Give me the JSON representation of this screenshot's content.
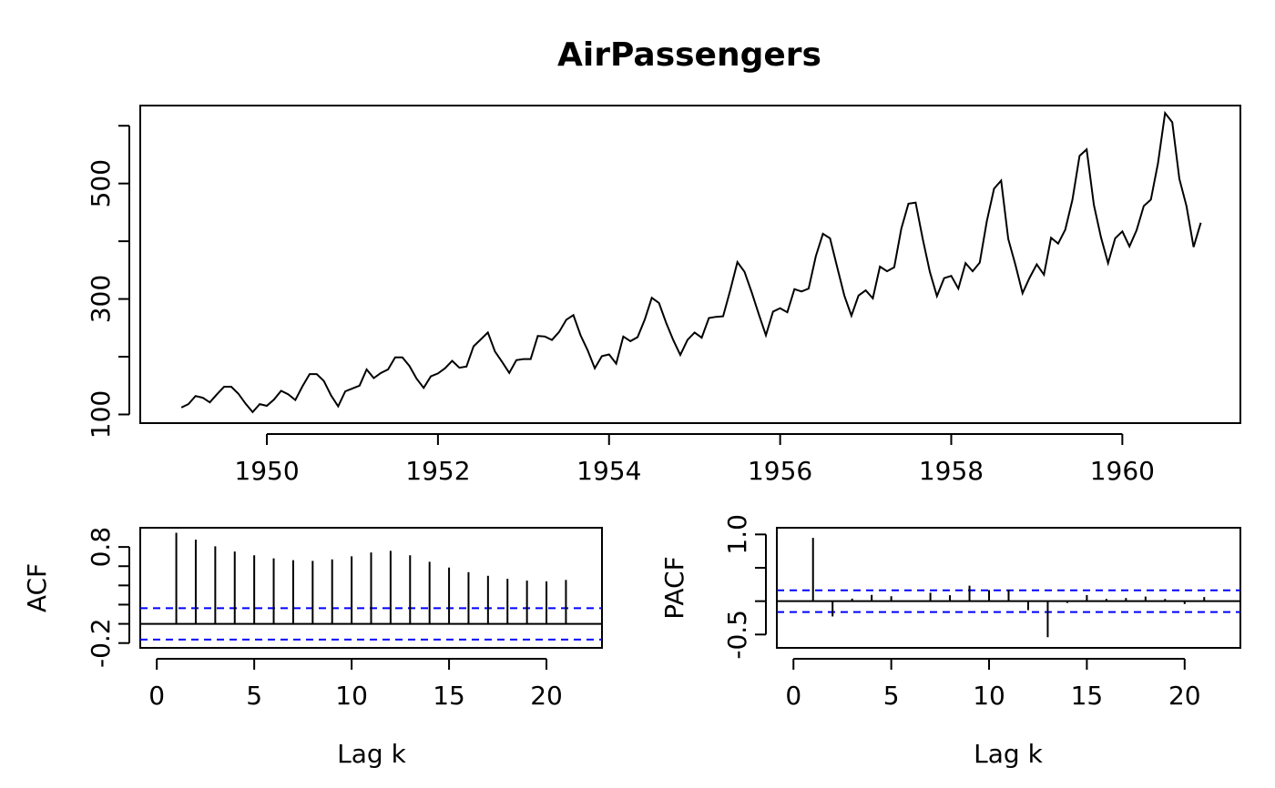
{
  "figure": {
    "background": "#ffffff"
  },
  "chart_data": [
    {
      "id": "series",
      "type": "line",
      "title": "AirPassengers",
      "xlabel": "",
      "ylabel": "",
      "xlim": [
        1948.52,
        1961.38
      ],
      "ylim": [
        85,
        635
      ],
      "x_ticks": [
        1950,
        1952,
        1954,
        1956,
        1958,
        1960
      ],
      "x_tick_labels": [
        "1950",
        "1952",
        "1954",
        "1956",
        "1958",
        "1960"
      ],
      "y_ticks": [
        100,
        200,
        300,
        400,
        500,
        600
      ],
      "y_tick_labels": [
        "100",
        "",
        "300",
        "",
        "500",
        ""
      ],
      "x_start": 1949,
      "x_step": 0.0833333,
      "color": "#000000",
      "values": [
        112,
        118,
        132,
        129,
        121,
        135,
        148,
        148,
        136,
        119,
        104,
        118,
        115,
        126,
        141,
        135,
        125,
        149,
        170,
        170,
        158,
        133,
        114,
        140,
        145,
        150,
        178,
        163,
        172,
        178,
        199,
        199,
        184,
        162,
        146,
        166,
        171,
        180,
        193,
        181,
        183,
        218,
        230,
        242,
        209,
        191,
        172,
        194,
        196,
        196,
        236,
        235,
        229,
        243,
        264,
        272,
        237,
        211,
        180,
        201,
        204,
        188,
        235,
        227,
        234,
        264,
        302,
        293,
        259,
        229,
        203,
        229,
        242,
        233,
        267,
        269,
        270,
        315,
        364,
        347,
        312,
        274,
        237,
        278,
        284,
        277,
        317,
        313,
        318,
        374,
        413,
        405,
        355,
        306,
        271,
        306,
        315,
        301,
        356,
        348,
        355,
        422,
        465,
        467,
        404,
        347,
        305,
        336,
        340,
        318,
        362,
        348,
        363,
        435,
        491,
        505,
        404,
        359,
        310,
        337,
        360,
        342,
        406,
        396,
        420,
        472,
        548,
        559,
        463,
        407,
        362,
        405,
        417,
        391,
        419,
        461,
        472,
        535,
        622,
        606,
        508,
        461,
        390,
        432
      ]
    },
    {
      "id": "acf",
      "type": "bar",
      "title": "",
      "xlabel": "Lag k",
      "ylabel": "ACF",
      "xlim": [
        -0.85,
        22.85
      ],
      "ylim": [
        -0.25,
        1.0
      ],
      "x_ticks": [
        0,
        5,
        10,
        15,
        20
      ],
      "x_tick_labels": [
        "0",
        "5",
        "10",
        "15",
        "20"
      ],
      "y_ticks": [
        -0.2,
        0.0,
        0.2,
        0.4,
        0.6,
        0.8
      ],
      "y_tick_labels": [
        "-0.2",
        "",
        "",
        "",
        "",
        "0.8"
      ],
      "lags": [
        1,
        2,
        3,
        4,
        5,
        6,
        7,
        8,
        9,
        10,
        11,
        12,
        13,
        14,
        15,
        16,
        17,
        18,
        19,
        20,
        21
      ],
      "values": [
        0.948,
        0.876,
        0.807,
        0.753,
        0.714,
        0.682,
        0.663,
        0.656,
        0.671,
        0.703,
        0.743,
        0.76,
        0.713,
        0.646,
        0.586,
        0.538,
        0.5,
        0.469,
        0.45,
        0.442,
        0.457
      ],
      "baseline": 0.0,
      "ci_upper": 0.163,
      "ci_lower": -0.163,
      "ci_color": "#0000ff"
    },
    {
      "id": "pacf",
      "type": "bar",
      "title": "",
      "xlabel": "Lag k",
      "ylabel": "PACF",
      "xlim": [
        -0.85,
        22.85
      ],
      "ylim": [
        -0.7,
        1.1
      ],
      "x_ticks": [
        0,
        5,
        10,
        15,
        20
      ],
      "x_tick_labels": [
        "0",
        "5",
        "10",
        "15",
        "20"
      ],
      "y_ticks": [
        -0.5,
        0.0,
        0.5,
        1.0
      ],
      "y_tick_labels": [
        "-0.5",
        "",
        "",
        "1.0"
      ],
      "lags": [
        1,
        2,
        3,
        4,
        5,
        6,
        7,
        8,
        9,
        10,
        11,
        12,
        13,
        14,
        15,
        16,
        17,
        18,
        19,
        20,
        21
      ],
      "values": [
        0.948,
        -0.229,
        0.038,
        0.094,
        0.074,
        0.008,
        0.126,
        0.09,
        0.232,
        0.166,
        0.171,
        -0.135,
        -0.54,
        -0.027,
        0.091,
        0.034,
        0.047,
        0.069,
        0.033,
        -0.043,
        0.062
      ],
      "baseline": 0.0,
      "ci_upper": 0.163,
      "ci_lower": -0.163,
      "ci_color": "#0000ff"
    }
  ]
}
